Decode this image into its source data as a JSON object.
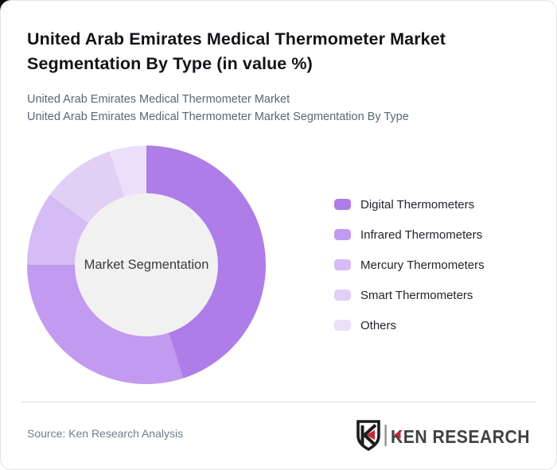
{
  "page": {
    "title": "United Arab Emirates Medical Thermometer Market Segmentation By Type (in value %)",
    "subtitle_line1": "United Arab Emirates Medical Thermometer Market",
    "subtitle_line2": "United Arab Emirates Medical Thermometer Market Segmentation By Type",
    "source": "Source: Ken Research Analysis"
  },
  "branding": {
    "logo_text": "KEN RESEARCH",
    "logo_letter": "K",
    "accent_red": "#c9252c",
    "shield_black": "#1c1c1c",
    "separator_gray": "#87888a",
    "wordmark_color": "#414042"
  },
  "chart_data": {
    "type": "pie",
    "donut": true,
    "start_angle_deg": 0,
    "direction": "clockwise",
    "categories": [
      "Digital Thermometers",
      "Infrared Thermometers",
      "Mercury Thermometers",
      "Smart Thermometers",
      "Others"
    ],
    "values": [
      45,
      30,
      10,
      10,
      5
    ],
    "colors": [
      "#ae7de7",
      "#c29af0",
      "#d6bcf4",
      "#e1cff6",
      "#ecdff9"
    ],
    "center_label": "Market Segmentation",
    "center_fill": "#f1f1f2",
    "inner_radius_ratio": 0.6,
    "legend_position": "right",
    "title": "United Arab Emirates Medical Thermometer Market Segmentation By Type (in value %)"
  }
}
